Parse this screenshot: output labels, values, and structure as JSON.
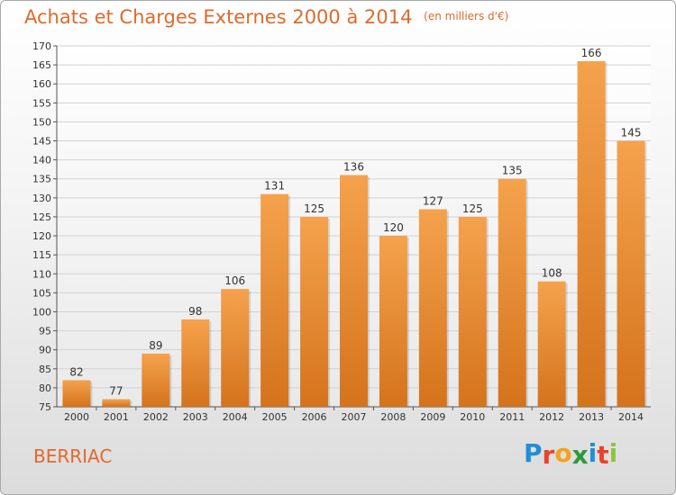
{
  "header": {
    "title": "Achats et Charges Externes 2000 à 2014",
    "unit": "(en milliers d'€)"
  },
  "footer": {
    "town": "BERRIAC",
    "logo_letters": [
      "P",
      "r",
      "o",
      "x",
      "i",
      "t",
      "i"
    ],
    "logo_colors": [
      "#1f8fd6",
      "#e8432a",
      "#f4a31f",
      "#2b9a3e",
      "#1f8fd6",
      "#e8432a",
      "#8dc63f"
    ]
  },
  "colors": {
    "bar_top": "#f5a24d",
    "bar_bottom": "#d4731c",
    "title": "#e06a2c"
  },
  "chart_data": {
    "type": "bar",
    "title": "Achats et Charges Externes 2000 à 2014",
    "categories": [
      "2000",
      "2001",
      "2002",
      "2003",
      "2004",
      "2005",
      "2006",
      "2007",
      "2008",
      "2009",
      "2010",
      "2011",
      "2012",
      "2013",
      "2014"
    ],
    "values": [
      82,
      77,
      89,
      98,
      106,
      131,
      125,
      136,
      120,
      127,
      125,
      135,
      108,
      166,
      145
    ],
    "ylim": [
      75,
      170
    ],
    "yticks": [
      75,
      80,
      85,
      90,
      95,
      100,
      105,
      110,
      115,
      120,
      125,
      130,
      135,
      140,
      145,
      150,
      155,
      160,
      165,
      170
    ],
    "grid": true
  }
}
